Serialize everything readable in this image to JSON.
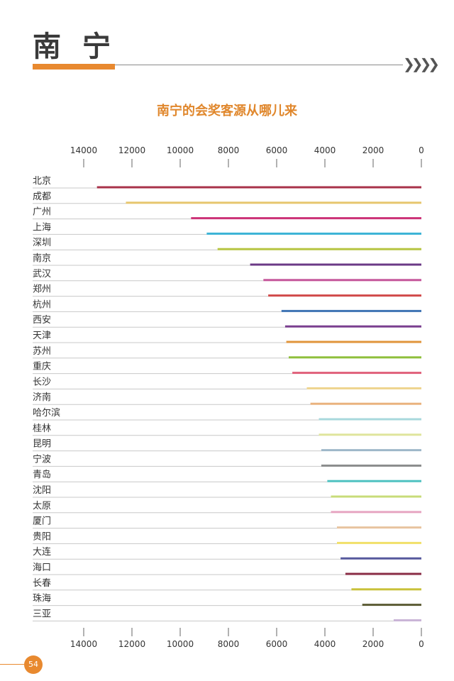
{
  "page": {
    "title": "南宁",
    "page_number": "54"
  },
  "chart_data": {
    "type": "bar",
    "orientation": "horizontal",
    "x_reversed": true,
    "title": "南宁的会奖客源从哪儿来",
    "xlim": [
      0,
      14000
    ],
    "xticks": [
      14000,
      12000,
      10000,
      8000,
      6000,
      4000,
      2000,
      0
    ],
    "tick_labels": [
      "14000",
      "12000",
      "10000",
      "8000",
      "6000",
      "4000",
      "2000",
      "0"
    ],
    "axis_position": "top and bottom",
    "categories": [
      "北京",
      "成都",
      "广州",
      "上海",
      "深圳",
      "南京",
      "武汉",
      "郑州",
      "杭州",
      "西安",
      "天津",
      "苏州",
      "重庆",
      "长沙",
      "济南",
      "哈尔滨",
      "桂林",
      "昆明",
      "宁波",
      "青岛",
      "沈阳",
      "太原",
      "厦门",
      "贵阳",
      "大连",
      "海口",
      "长春",
      "珠海",
      "三亚"
    ],
    "values": [
      13450,
      12250,
      9550,
      8900,
      8450,
      7100,
      6550,
      6350,
      5800,
      5650,
      5600,
      5500,
      5350,
      4750,
      4600,
      4250,
      4250,
      4150,
      4150,
      3900,
      3750,
      3750,
      3500,
      3500,
      3350,
      3150,
      2900,
      2450,
      1150
    ],
    "colors": [
      "#a8324a",
      "#e6c66e",
      "#cc3377",
      "#3bb3d6",
      "#b6c441",
      "#6b3a86",
      "#c5559a",
      "#d14a4a",
      "#3f74b4",
      "#7a3f8f",
      "#e0943b",
      "#8fbf3c",
      "#e0607a",
      "#eed48e",
      "#eab27d",
      "#a8d8dc",
      "#dfe59c",
      "#9fb8c9",
      "#8a8c8c",
      "#4ec2c0",
      "#c8dc79",
      "#e6a6c2",
      "#e8c4a0",
      "#f1e06a",
      "#55589c",
      "#8a2c45",
      "#c9c13a",
      "#5c5c35",
      "#c9b3d6"
    ]
  }
}
